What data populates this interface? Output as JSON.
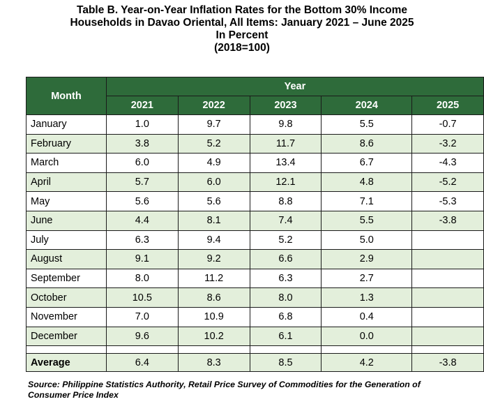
{
  "title": {
    "line1": "Table B. Year-on-Year Inflation Rates for the Bottom 30% Income",
    "line2": "Households in Davao Oriental, All Items: January 2021 – June 2025",
    "line3": "In Percent",
    "line4": "(2018=100)"
  },
  "table": {
    "month_header": "Month",
    "year_header": "Year",
    "years": [
      "2021",
      "2022",
      "2023",
      "2024",
      "2025"
    ],
    "rows": [
      {
        "month": "January",
        "values": [
          "1.0",
          "9.7",
          "9.8",
          "5.5",
          "-0.7"
        ]
      },
      {
        "month": "February",
        "values": [
          "3.8",
          "5.2",
          "11.7",
          "8.6",
          "-3.2"
        ]
      },
      {
        "month": "March",
        "values": [
          "6.0",
          "4.9",
          "13.4",
          "6.7",
          "-4.3"
        ]
      },
      {
        "month": "April",
        "values": [
          "5.7",
          "6.0",
          "12.1",
          "4.8",
          "-5.2"
        ]
      },
      {
        "month": "May",
        "values": [
          "5.6",
          "5.6",
          "8.8",
          "7.1",
          "-5.3"
        ]
      },
      {
        "month": "June",
        "values": [
          "4.4",
          "8.1",
          "7.4",
          "5.5",
          "-3.8"
        ]
      },
      {
        "month": "July",
        "values": [
          "6.3",
          "9.4",
          "5.2",
          "5.0",
          ""
        ]
      },
      {
        "month": "August",
        "values": [
          "9.1",
          "9.2",
          "6.6",
          "2.9",
          ""
        ]
      },
      {
        "month": "September",
        "values": [
          "8.0",
          "11.2",
          "6.3",
          "2.7",
          ""
        ]
      },
      {
        "month": "October",
        "values": [
          "10.5",
          "8.6",
          "8.0",
          "1.3",
          ""
        ]
      },
      {
        "month": "November",
        "values": [
          "7.0",
          "10.9",
          "6.8",
          "0.4",
          ""
        ]
      },
      {
        "month": "December",
        "values": [
          "9.6",
          "10.2",
          "6.1",
          "0.0",
          ""
        ]
      }
    ],
    "average": {
      "label": "Average",
      "values": [
        "6.4",
        "8.3",
        "8.5",
        "4.2",
        "-3.8"
      ]
    }
  },
  "colors": {
    "header_bg": "#2e6b3a",
    "shade_bg": "#e3efdb"
  },
  "source": {
    "line1": "Source: Philippine Statistics Authority, Retail Price Survey of Commodities for the Generation of",
    "line2": "Consumer Price Index"
  }
}
